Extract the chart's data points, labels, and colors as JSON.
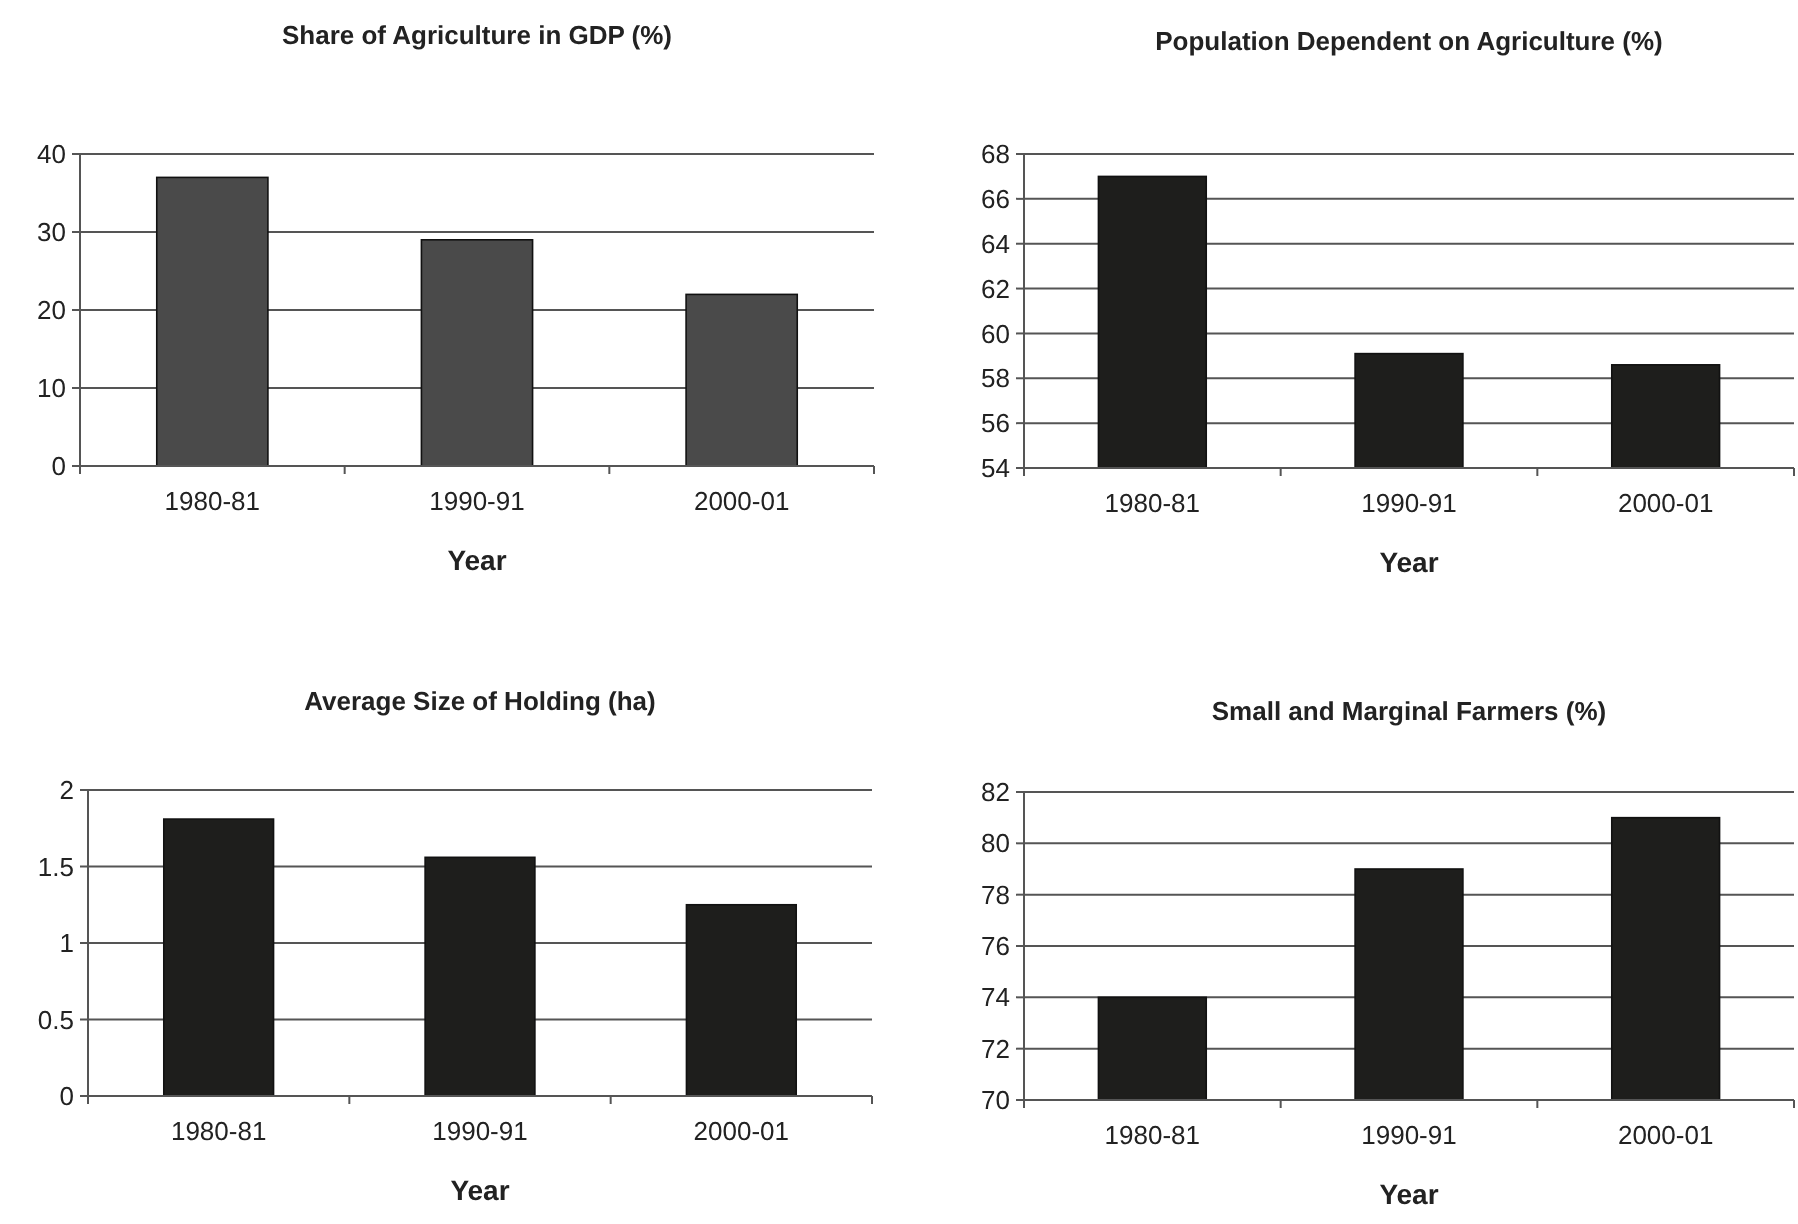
{
  "chart_data": [
    {
      "type": "bar",
      "title": "Share of Agriculture in GDP (%)",
      "xlabel": "Year",
      "categories": [
        "1980-81",
        "1990-91",
        "2000-01"
      ],
      "values": [
        37,
        29,
        22
      ],
      "color": "#4a4a4a",
      "ylim": [
        0,
        40
      ],
      "yticks": [
        0,
        10,
        20,
        30,
        40
      ],
      "grid": "y"
    },
    {
      "type": "bar",
      "title": "Population Dependent on Agriculture (%)",
      "xlabel": "Year",
      "categories": [
        "1980-81",
        "1990-91",
        "2000-01"
      ],
      "values": [
        67,
        59.1,
        58.6
      ],
      "color": "#1e1e1c",
      "ylim": [
        54,
        68
      ],
      "yticks": [
        54,
        56,
        58,
        60,
        62,
        64,
        66,
        68
      ],
      "grid": "y"
    },
    {
      "type": "bar",
      "title": "Average Size of Holding (ha)",
      "xlabel": "Year",
      "categories": [
        "1980-81",
        "1990-91",
        "2000-01"
      ],
      "values": [
        1.81,
        1.56,
        1.25
      ],
      "color": "#1e1e1c",
      "ylim": [
        0,
        2
      ],
      "yticks": [
        0,
        0.5,
        1,
        1.5,
        2
      ],
      "grid": "y"
    },
    {
      "type": "bar",
      "title": "Small and Marginal Farmers (%)",
      "xlabel": "Year",
      "categories": [
        "1980-81",
        "1990-91",
        "2000-01"
      ],
      "values": [
        74,
        79,
        81
      ],
      "color": "#1e1e1c",
      "ylim": [
        70,
        82
      ],
      "yticks": [
        70,
        72,
        74,
        76,
        78,
        80,
        82
      ],
      "grid": "y"
    }
  ]
}
